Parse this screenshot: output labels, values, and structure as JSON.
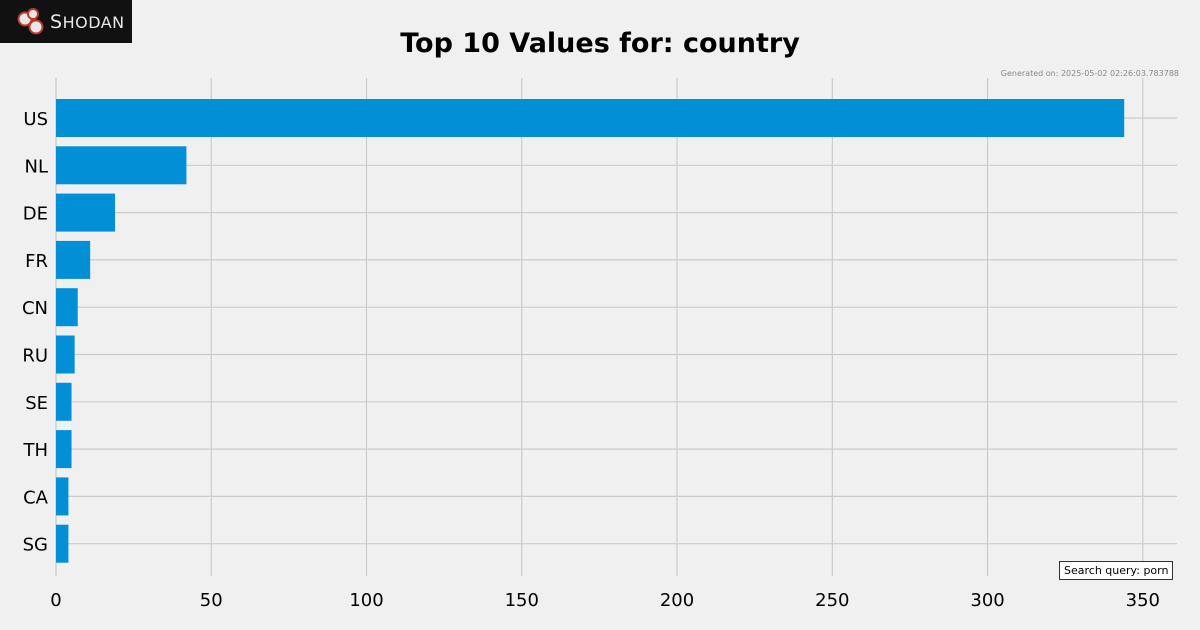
{
  "logo": {
    "text": "Shodan",
    "icon": "shodan-logo-icon"
  },
  "generated_text": "Generated on: 2025-05-02 02:26:03.783788",
  "search_query_text": "Search query: porn",
  "colors": {
    "bar": "#038fd6",
    "background": "#f0f0f0",
    "grid": "#cbcbcb"
  },
  "chart_data": {
    "type": "bar",
    "orientation": "horizontal",
    "title": "Top 10 Values for: country",
    "categories": [
      "US",
      "NL",
      "DE",
      "FR",
      "CN",
      "RU",
      "SE",
      "TH",
      "CA",
      "SG"
    ],
    "values": [
      344,
      42,
      19,
      11,
      7,
      6,
      5,
      5,
      4,
      4
    ],
    "xlabel": "",
    "ylabel": "",
    "xlim": [
      0,
      361
    ],
    "xticks": [
      0,
      50,
      100,
      150,
      200,
      250,
      300,
      350
    ],
    "grid": true,
    "legend": "none"
  }
}
